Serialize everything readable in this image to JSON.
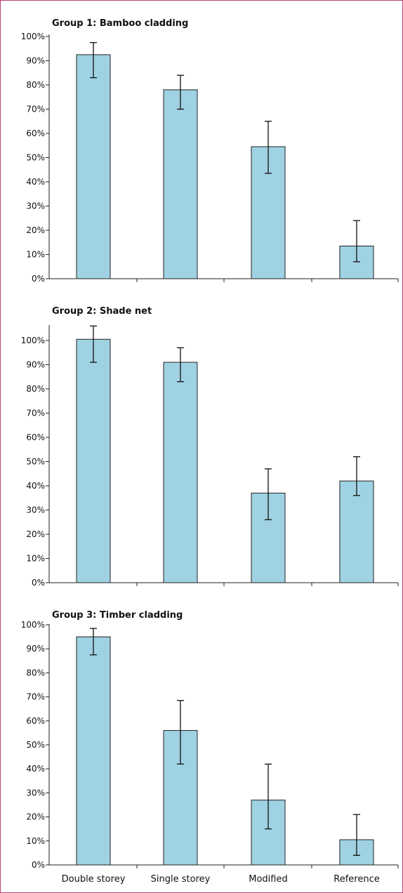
{
  "chart_data": [
    {
      "type": "bar",
      "title": "Group 1: Bamboo cladding",
      "categories": [
        "Double storey",
        "Single storey",
        "Modified",
        "Reference"
      ],
      "values": [
        92.5,
        78,
        54.5,
        13.5
      ],
      "error_low": [
        83,
        70,
        43.5,
        7
      ],
      "error_high": [
        97.5,
        84,
        65,
        24
      ],
      "ylim": [
        0,
        100
      ],
      "yticks": [
        "0%",
        "10%",
        "20%",
        "30%",
        "40%",
        "50%",
        "60%",
        "70%",
        "80%",
        "90%",
        "100%"
      ],
      "show_category_labels": false
    },
    {
      "type": "bar",
      "title": "Group 2: Shade net",
      "categories": [
        "Double storey",
        "Single storey",
        "Modified",
        "Reference"
      ],
      "values": [
        100.5,
        91,
        37,
        42
      ],
      "error_low": [
        91,
        83,
        26,
        36
      ],
      "error_high": [
        106,
        97,
        47,
        52
      ],
      "ylim": [
        0,
        107
      ],
      "yticks": [
        "0%",
        "10%",
        "20%",
        "30%",
        "40%",
        "50%",
        "60%",
        "70%",
        "80%",
        "90%",
        "100%"
      ],
      "show_category_labels": false
    },
    {
      "type": "bar",
      "title": "Group 3: Timber cladding",
      "categories": [
        "Double storey",
        "Single storey",
        "Modified",
        "Reference"
      ],
      "values": [
        95,
        56,
        27,
        10.5
      ],
      "error_low": [
        87.5,
        42,
        15,
        4
      ],
      "error_high": [
        98.5,
        68.5,
        42,
        21
      ],
      "ylim": [
        0,
        100
      ],
      "yticks": [
        "0%",
        "10%",
        "20%",
        "30%",
        "40%",
        "50%",
        "60%",
        "70%",
        "80%",
        "90%",
        "100%"
      ],
      "show_category_labels": true
    }
  ],
  "colors": {
    "bar_fill": "#9fd2e2",
    "bar_stroke": "#222222",
    "frame": "#b5457a"
  }
}
